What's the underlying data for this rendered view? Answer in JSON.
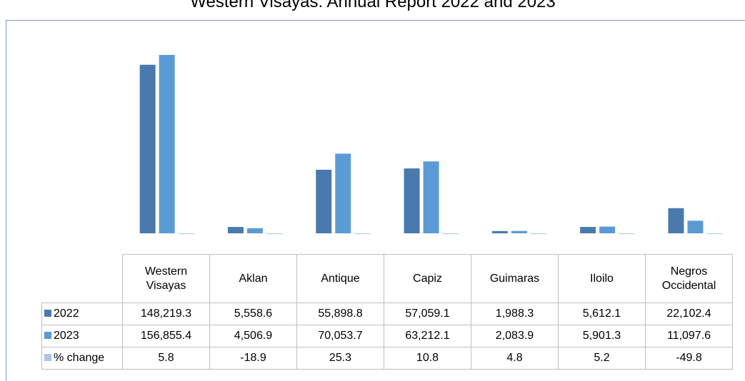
{
  "chart_data": {
    "type": "bar",
    "title": "Western Visayas: Annual Report 2022 and 2023",
    "categories": [
      "Western Visayas",
      "Aklan",
      "Antique",
      "Capiz",
      "Guimaras",
      "Iloilo",
      "Negros Occidental"
    ],
    "series": [
      {
        "name": "2022",
        "color": "#4a7aad",
        "values": [
          148219.3,
          5558.6,
          55898.8,
          57059.1,
          1988.3,
          5612.1,
          22102.4
        ],
        "value_labels": [
          "148,219.3",
          "5,558.6",
          "55,898.8",
          "57,059.1",
          "1,988.3",
          "5,612.1",
          "22,102.4"
        ]
      },
      {
        "name": "2023",
        "color": "#5b9bd5",
        "values": [
          156855.4,
          4506.9,
          70053.7,
          63212.1,
          2083.9,
          5901.3,
          11097.6
        ],
        "value_labels": [
          "156,855.4",
          "4,506.9",
          "70,053.7",
          "63,212.1",
          "2,083.9",
          "5,901.3",
          "11,097.6"
        ]
      },
      {
        "name": "% change",
        "color": "#a9c6e8",
        "values": [
          5.8,
          -18.9,
          25.3,
          10.8,
          4.8,
          5.2,
          -49.8
        ]
      }
    ]
  }
}
